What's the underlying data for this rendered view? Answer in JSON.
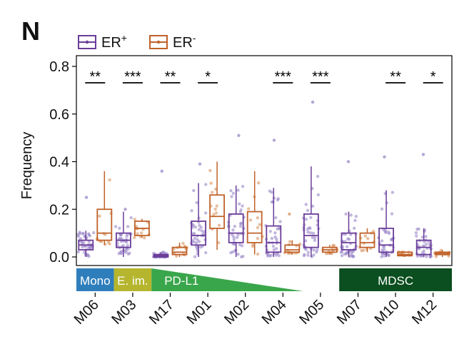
{
  "chart_data": {
    "type": "box",
    "panel_label": "N",
    "ylabel": "Frequency",
    "ylim": [
      0,
      0.8
    ],
    "yticks": [
      0.0,
      0.2,
      0.4,
      0.6,
      0.8
    ],
    "ytick_labels": [
      "0.0",
      "0.2",
      "0.4",
      "0.6",
      "0.8"
    ],
    "legend_position": "top-left",
    "grid": false,
    "categories": [
      "M06",
      "M03",
      "M17",
      "M01",
      "M02",
      "M04",
      "M05",
      "M07",
      "M10",
      "M12"
    ],
    "series": [
      {
        "name": "ER",
        "name_sup": "+",
        "color": "#6a3d9a",
        "point_color": "#9b87c8",
        "boxes": [
          {
            "q1": 0.03,
            "median": 0.05,
            "q3": 0.07,
            "wlo": 0.0,
            "whi": 0.11,
            "max": 0.25
          },
          {
            "q1": 0.04,
            "median": 0.07,
            "q3": 0.1,
            "wlo": 0.0,
            "whi": 0.19,
            "max": 0.2
          },
          {
            "q1": 0.0,
            "median": 0.005,
            "q3": 0.01,
            "wlo": 0.0,
            "whi": 0.02,
            "max": 0.36
          },
          {
            "q1": 0.05,
            "median": 0.09,
            "q3": 0.15,
            "wlo": 0.0,
            "whi": 0.31,
            "max": 0.39
          },
          {
            "q1": 0.06,
            "median": 0.1,
            "q3": 0.18,
            "wlo": 0.0,
            "whi": 0.3,
            "max": 0.51
          },
          {
            "q1": 0.02,
            "median": 0.06,
            "q3": 0.13,
            "wlo": 0.0,
            "whi": 0.29,
            "max": 0.49
          },
          {
            "q1": 0.04,
            "median": 0.09,
            "q3": 0.18,
            "wlo": 0.0,
            "whi": 0.38,
            "max": 0.65
          },
          {
            "q1": 0.03,
            "median": 0.06,
            "q3": 0.1,
            "wlo": 0.0,
            "whi": 0.19,
            "max": 0.4
          },
          {
            "q1": 0.02,
            "median": 0.05,
            "q3": 0.12,
            "wlo": 0.0,
            "whi": 0.28,
            "max": 0.42
          },
          {
            "q1": 0.01,
            "median": 0.04,
            "q3": 0.07,
            "wlo": 0.0,
            "whi": 0.12,
            "max": 0.43
          }
        ]
      },
      {
        "name": "ER",
        "name_sup": "-",
        "color": "#c0622a",
        "point_color": "#d9935e",
        "boxes": [
          {
            "q1": 0.07,
            "median": 0.1,
            "q3": 0.2,
            "wlo": 0.05,
            "whi": 0.36,
            "max": 0.36
          },
          {
            "q1": 0.09,
            "median": 0.12,
            "q3": 0.15,
            "wlo": 0.08,
            "whi": 0.16,
            "max": 0.16
          },
          {
            "q1": 0.01,
            "median": 0.02,
            "q3": 0.04,
            "wlo": 0.0,
            "whi": 0.06,
            "max": 0.06
          },
          {
            "q1": 0.12,
            "median": 0.17,
            "q3": 0.26,
            "wlo": 0.03,
            "whi": 0.4,
            "max": 0.4
          },
          {
            "q1": 0.06,
            "median": 0.1,
            "q3": 0.19,
            "wlo": 0.01,
            "whi": 0.36,
            "max": 0.36
          },
          {
            "q1": 0.02,
            "median": 0.03,
            "q3": 0.05,
            "wlo": 0.01,
            "whi": 0.07,
            "max": 0.18
          },
          {
            "q1": 0.02,
            "median": 0.03,
            "q3": 0.04,
            "wlo": 0.01,
            "whi": 0.05,
            "max": 0.05
          },
          {
            "q1": 0.04,
            "median": 0.06,
            "q3": 0.1,
            "wlo": 0.02,
            "whi": 0.12,
            "max": 0.12
          },
          {
            "q1": 0.005,
            "median": 0.01,
            "q3": 0.02,
            "wlo": 0.0,
            "whi": 0.02,
            "max": 0.02
          },
          {
            "q1": 0.01,
            "median": 0.015,
            "q3": 0.02,
            "wlo": 0.0,
            "whi": 0.03,
            "max": 0.03
          }
        ]
      }
    ],
    "significance": [
      {
        "category": "M06",
        "label": "**"
      },
      {
        "category": "M03",
        "label": "***"
      },
      {
        "category": "M17",
        "label": "**"
      },
      {
        "category": "M01",
        "label": "*"
      },
      {
        "category": "M04",
        "label": "***"
      },
      {
        "category": "M05",
        "label": "***"
      },
      {
        "category": "M10",
        "label": "**"
      },
      {
        "category": "M12",
        "label": "*"
      }
    ],
    "annotation_bar": [
      {
        "label": "Mono",
        "from": "M06",
        "to": "M06",
        "color": "#2f7ebc",
        "shape": "rect"
      },
      {
        "label": "E. im.",
        "from": "M03",
        "to": "M03",
        "color": "#b5b52e",
        "shape": "rect"
      },
      {
        "label": "PD-L1",
        "from": "M17",
        "to": "M04",
        "color": "#3aa64b",
        "shape": "wedge"
      },
      {
        "label": "MDSC",
        "from": "M07",
        "to": "M12",
        "color": "#0b4e1f",
        "shape": "rect"
      }
    ]
  }
}
